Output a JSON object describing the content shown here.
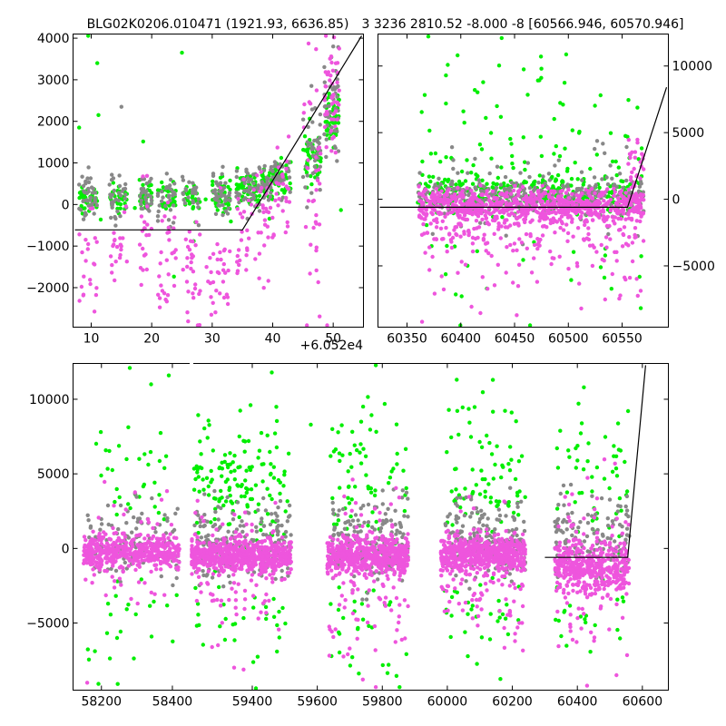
{
  "colors": {
    "green": "#00ee00",
    "magenta": "#ee55dd",
    "gray": "#888888",
    "line": "#000000"
  },
  "chart_data": [
    {
      "id": "zoom",
      "type": "scatter",
      "title": "BLG02K0206.010471 (1921.93, 6636.85)",
      "offset_label": "+6.052e4",
      "xlim": [
        7,
        55
      ],
      "ylim": [
        -2950,
        4100
      ],
      "xticks": [
        10,
        20,
        30,
        40,
        50
      ],
      "yticks": [
        -2000,
        -1000,
        0,
        1000,
        2000,
        3000,
        4000
      ],
      "ytick_side": "left",
      "model_line": {
        "x": [
          7,
          35,
          55
        ],
        "y": [
          -610,
          -610,
          4130
        ]
      },
      "series": [
        {
          "color": "green",
          "clusters": [
            {
              "x": [
                8,
                11
              ],
              "y": [
                -200,
                450
              ],
              "n": 42
            },
            {
              "x": [
                13,
                16
              ],
              "y": [
                -200,
                450
              ],
              "n": 32
            },
            {
              "x": [
                18,
                20
              ],
              "y": [
                -150,
                500
              ],
              "n": 28
            },
            {
              "x": [
                21,
                24
              ],
              "y": [
                -200,
                450
              ],
              "n": 32
            },
            {
              "x": [
                25,
                28
              ],
              "y": [
                -150,
                450
              ],
              "n": 26
            },
            {
              "x": [
                30,
                33
              ],
              "y": [
                -100,
                650
              ],
              "n": 45
            },
            {
              "x": [
                34,
                38
              ],
              "y": [
                -50,
                750
              ],
              "n": 52
            },
            {
              "x": [
                38,
                40
              ],
              "y": [
                200,
                850
              ],
              "n": 34
            },
            {
              "x": [
                40,
                43
              ],
              "y": [
                300,
                950
              ],
              "n": 34
            },
            {
              "x": [
                45,
                48
              ],
              "y": [
                700,
                1800
              ],
              "n": 44
            },
            {
              "x": [
                48.5,
                51
              ],
              "y": [
                1400,
                2700
              ],
              "n": 48
            },
            {
              "x": [
                7,
                52
              ],
              "y": [
                -1200,
                2000
              ],
              "n": 18
            }
          ],
          "points": [
            [
              8,
              1850
            ],
            [
              9.5,
              4070
            ],
            [
              11,
              3400
            ],
            [
              11.2,
              2150
            ],
            [
              25,
              3650
            ]
          ]
        },
        {
          "color": "gray",
          "clusters": [
            {
              "x": [
                8,
                11
              ],
              "y": [
                -350,
                700
              ],
              "n": 40
            },
            {
              "x": [
                13,
                16
              ],
              "y": [
                -350,
                650
              ],
              "n": 32
            },
            {
              "x": [
                18,
                20
              ],
              "y": [
                -300,
                850
              ],
              "n": 28
            },
            {
              "x": [
                21,
                24
              ],
              "y": [
                -300,
                700
              ],
              "n": 30
            },
            {
              "x": [
                25,
                28
              ],
              "y": [
                -250,
                700
              ],
              "n": 26
            },
            {
              "x": [
                30,
                33
              ],
              "y": [
                -200,
                750
              ],
              "n": 40
            },
            {
              "x": [
                34,
                38
              ],
              "y": [
                -100,
                850
              ],
              "n": 46
            },
            {
              "x": [
                38,
                40
              ],
              "y": [
                100,
                900
              ],
              "n": 30
            },
            {
              "x": [
                40,
                43
              ],
              "y": [
                200,
                1100
              ],
              "n": 30
            },
            {
              "x": [
                45,
                48
              ],
              "y": [
                400,
                2300
              ],
              "n": 40
            },
            {
              "x": [
                48.5,
                51
              ],
              "y": [
                1100,
                3400
              ],
              "n": 44
            }
          ],
          "points": [
            [
              15,
              2350
            ],
            [
              50,
              3800
            ]
          ]
        },
        {
          "color": "magenta",
          "clusters": [
            {
              "x": [
                8,
                11
              ],
              "y": [
                -2500,
                0
              ],
              "n": 22
            },
            {
              "x": [
                13,
                16
              ],
              "y": [
                -2000,
                -200
              ],
              "n": 22
            },
            {
              "x": [
                18,
                20
              ],
              "y": [
                -1800,
                300
              ],
              "n": 20
            },
            {
              "x": [
                21,
                24
              ],
              "y": [
                -2700,
                -300
              ],
              "n": 28
            },
            {
              "x": [
                25,
                28
              ],
              "y": [
                -2900,
                -300
              ],
              "n": 30
            },
            {
              "x": [
                29,
                33
              ],
              "y": [
                -2950,
                -400
              ],
              "n": 32
            },
            {
              "x": [
                34,
                38
              ],
              "y": [
                -1800,
                600
              ],
              "n": 32
            },
            {
              "x": [
                38,
                40
              ],
              "y": [
                -1400,
                900
              ],
              "n": 22
            },
            {
              "x": [
                40,
                43
              ],
              "y": [
                -1200,
                1700
              ],
              "n": 26
            },
            {
              "x": [
                45,
                48
              ],
              "y": [
                -2200,
                3000
              ],
              "n": 36
            },
            {
              "x": [
                48.5,
                51
              ],
              "y": [
                1500,
                3800
              ],
              "n": 44
            }
          ],
          "points": [
            [
              49,
              -2950
            ],
            [
              51,
              3750
            ]
          ]
        }
      ]
    },
    {
      "id": "recent",
      "type": "scatter",
      "title": "3 3236 2810.52 -8.000 -8 [60566.946, 60570.946]",
      "xlim": [
        60323,
        60593
      ],
      "ylim": [
        -9600,
        12400
      ],
      "xticks": [
        60350,
        60400,
        60450,
        60500,
        60550
      ],
      "yticks": [
        -5000,
        0,
        5000,
        10000
      ],
      "ytick_side": "right",
      "model_line": {
        "x": [
          60323,
          60555,
          60593
        ],
        "y": [
          -600,
          -600,
          8400
        ]
      },
      "series": [
        {
          "color": "green",
          "clusters": [
            {
              "x": [
                60360,
                60570
              ],
              "y": [
                -600,
                1700
              ],
              "n": 320
            },
            {
              "x": [
                60360,
                60570
              ],
              "y": [
                1500,
                5000
              ],
              "n": 48
            },
            {
              "x": [
                60360,
                60570
              ],
              "y": [
                5000,
                11000
              ],
              "n": 26
            },
            {
              "x": [
                60360,
                60570
              ],
              "y": [
                -8000,
                -1500
              ],
              "n": 26
            }
          ],
          "points": [
            [
              60438,
              12100
            ],
            [
              60397,
              10800
            ],
            [
              60475,
              9800
            ],
            [
              60530,
              7800
            ],
            [
              60413,
              8200
            ]
          ]
        },
        {
          "color": "gray",
          "clusters": [
            {
              "x": [
                60360,
                60570
              ],
              "y": [
                -900,
                1300
              ],
              "n": 300
            },
            {
              "x": [
                60360,
                60570
              ],
              "y": [
                -3000,
                3500
              ],
              "n": 60
            }
          ],
          "points": []
        },
        {
          "color": "magenta",
          "clusters": [
            {
              "x": [
                60360,
                60570
              ],
              "y": [
                -1500,
                600
              ],
              "n": 720
            },
            {
              "x": [
                60360,
                60570
              ],
              "y": [
                -4500,
                -1000
              ],
              "n": 170
            },
            {
              "x": [
                60360,
                60570
              ],
              "y": [
                -8500,
                -3500
              ],
              "n": 36
            },
            {
              "x": [
                60555,
                60570
              ],
              "y": [
                0,
                4800
              ],
              "n": 30
            }
          ],
          "points": [
            [
              60364,
              -9200
            ],
            [
              60452,
              -8700
            ],
            [
              60512,
              -8200
            ]
          ]
        }
      ]
    },
    {
      "id": "full",
      "type": "scatter",
      "title": "",
      "xlim": [
        58120,
        60680
      ],
      "ylim": [
        -9500,
        12400
      ],
      "xticks": [
        58200,
        58400,
        59400,
        59600,
        59800,
        60000,
        60200,
        60400,
        60600
      ],
      "yticks": [
        -5000,
        0,
        5000,
        10000
      ],
      "ytick_side": "left",
      "axis_gap": [
        58450,
        59220
      ],
      "model_line": {
        "x": [
          60300,
          60555,
          60610
        ],
        "y": [
          -600,
          -600,
          12400
        ]
      },
      "series": [
        {
          "color": "green",
          "clusters": [
            {
              "x": [
                58160,
                58420
              ],
              "y": [
                1000,
                8000
              ],
              "n": 34
            },
            {
              "x": [
                58160,
                58420
              ],
              "y": [
                -8000,
                -1000
              ],
              "n": 24
            },
            {
              "x": [
                59220,
                59520
              ],
              "y": [
                1000,
                8500
              ],
              "n": 140
            },
            {
              "x": [
                59220,
                59520
              ],
              "y": [
                -8000,
                -1000
              ],
              "n": 34
            },
            {
              "x": [
                59640,
                59880
              ],
              "y": [
                1000,
                9000
              ],
              "n": 70
            },
            {
              "x": [
                59640,
                59880
              ],
              "y": [
                -8500,
                -1000
              ],
              "n": 36
            },
            {
              "x": [
                59990,
                60240
              ],
              "y": [
                1000,
                9000
              ],
              "n": 80
            },
            {
              "x": [
                59990,
                60240
              ],
              "y": [
                -8500,
                -1000
              ],
              "n": 34
            },
            {
              "x": [
                60330,
                60560
              ],
              "y": [
                1000,
                9000
              ],
              "n": 52
            },
            {
              "x": [
                60330,
                60560
              ],
              "y": [
                -7000,
                -1000
              ],
              "n": 22
            }
          ],
          "points": [
            [
              58280,
              12100
            ],
            [
              59460,
              11800
            ],
            [
              59780,
              12300
            ],
            [
              60140,
              11300
            ],
            [
              58340,
              11000
            ],
            [
              60420,
              10800
            ],
            [
              58390,
              11600
            ],
            [
              59580,
              8300
            ]
          ]
        },
        {
          "color": "gray",
          "clusters": [
            {
              "x": [
                58160,
                58420
              ],
              "y": [
                -1800,
                2500
              ],
              "n": 120
            },
            {
              "x": [
                59220,
                59520
              ],
              "y": [
                -1800,
                2800
              ],
              "n": 200
            },
            {
              "x": [
                59640,
                59880
              ],
              "y": [
                -1800,
                3000
              ],
              "n": 170
            },
            {
              "x": [
                59990,
                60240
              ],
              "y": [
                -1800,
                2800
              ],
              "n": 180
            },
            {
              "x": [
                60330,
                60560
              ],
              "y": [
                -1500,
                3000
              ],
              "n": 130
            }
          ],
          "points": []
        },
        {
          "color": "magenta",
          "clusters": [
            {
              "x": [
                58150,
                58420
              ],
              "y": [
                -1200,
                700
              ],
              "n": 420
            },
            {
              "x": [
                58150,
                58420
              ],
              "y": [
                -4500,
                3000
              ],
              "n": 60
            },
            {
              "x": [
                59210,
                59520
              ],
              "y": [
                -1400,
                500
              ],
              "n": 620
            },
            {
              "x": [
                59210,
                59520
              ],
              "y": [
                -6000,
                2500
              ],
              "n": 90
            },
            {
              "x": [
                59630,
                59880
              ],
              "y": [
                -1500,
                600
              ],
              "n": 540
            },
            {
              "x": [
                59630,
                59880
              ],
              "y": [
                -7000,
                2500
              ],
              "n": 110
            },
            {
              "x": [
                59980,
                60240
              ],
              "y": [
                -1500,
                600
              ],
              "n": 560
            },
            {
              "x": [
                59980,
                60240
              ],
              "y": [
                -6000,
                2500
              ],
              "n": 100
            },
            {
              "x": [
                60330,
                60560
              ],
              "y": [
                -2800,
                300
              ],
              "n": 380
            },
            {
              "x": [
                60330,
                60560
              ],
              "y": [
                -7500,
                4000
              ],
              "n": 80
            }
          ],
          "points": [
            [
              58160,
              -9000
            ],
            [
              59780,
              -9300
            ],
            [
              60430,
              -9200
            ]
          ]
        }
      ]
    }
  ]
}
